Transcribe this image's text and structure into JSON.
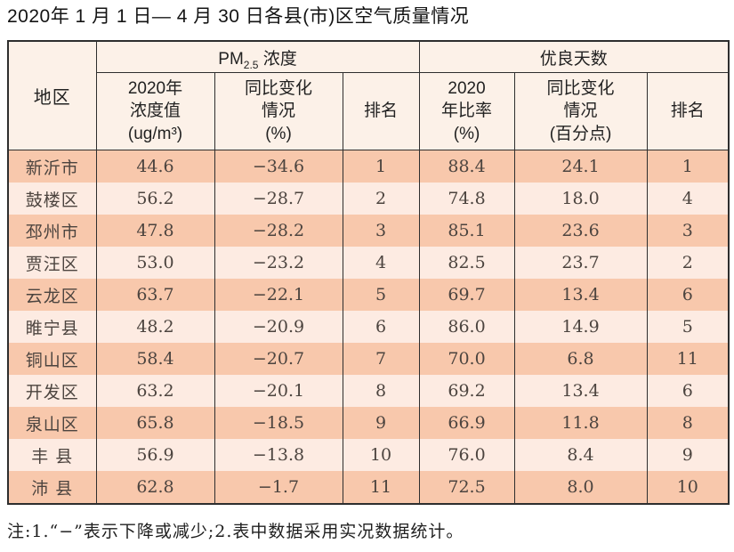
{
  "page": {
    "title": "2020年 1 月 1 日— 4 月 30 日各县(市)区空气质量情况",
    "footnote": "注:1.“−”表示下降或减少;2.表中数据采用实况数据统计。"
  },
  "colors": {
    "row_dark": "#f8c8ac",
    "row_light": "#fdebe2",
    "header_bg": "#fcf1e8",
    "border": "#2e2e2e"
  },
  "table": {
    "corner_header": "地区",
    "groups": [
      {
        "prefix": "PM",
        "subscript": "2.5",
        "suffix": " 浓度"
      },
      {
        "label": "优良天数"
      }
    ],
    "subheaders": [
      "2020年\n浓度值\n(ug/m³)",
      "同比变化\n情况\n(%)",
      "排名",
      "2020\n年比率\n(%)",
      "同比变化\n情况\n(百分点)",
      "排名"
    ],
    "rows": [
      {
        "region": "新沂市",
        "pm_value": "44.6",
        "pm_change": "−34.6",
        "pm_rank": "1",
        "good_ratio": "88.4",
        "good_change": "24.1",
        "good_rank": "1"
      },
      {
        "region": "鼓楼区",
        "pm_value": "56.2",
        "pm_change": "−28.7",
        "pm_rank": "2",
        "good_ratio": "74.8",
        "good_change": "18.0",
        "good_rank": "4"
      },
      {
        "region": "邳州市",
        "pm_value": "47.8",
        "pm_change": "−28.2",
        "pm_rank": "3",
        "good_ratio": "85.1",
        "good_change": "23.6",
        "good_rank": "3"
      },
      {
        "region": "贾汪区",
        "pm_value": "53.0",
        "pm_change": "−23.2",
        "pm_rank": "4",
        "good_ratio": "82.5",
        "good_change": "23.7",
        "good_rank": "2"
      },
      {
        "region": "云龙区",
        "pm_value": "63.7",
        "pm_change": "−22.1",
        "pm_rank": "5",
        "good_ratio": "69.7",
        "good_change": "13.4",
        "good_rank": "6"
      },
      {
        "region": "睢宁县",
        "pm_value": "48.2",
        "pm_change": "−20.9",
        "pm_rank": "6",
        "good_ratio": "86.0",
        "good_change": "14.9",
        "good_rank": "5"
      },
      {
        "region": "铜山区",
        "pm_value": "58.4",
        "pm_change": "−20.7",
        "pm_rank": "7",
        "good_ratio": "70.0",
        "good_change": "6.8",
        "good_rank": "11"
      },
      {
        "region": "开发区",
        "pm_value": "63.2",
        "pm_change": "−20.1",
        "pm_rank": "8",
        "good_ratio": "69.2",
        "good_change": "13.4",
        "good_rank": "6"
      },
      {
        "region": "泉山区",
        "pm_value": "65.8",
        "pm_change": "−18.5",
        "pm_rank": "9",
        "good_ratio": "66.9",
        "good_change": "11.8",
        "good_rank": "8"
      },
      {
        "region": "丰 县",
        "pm_value": "56.9",
        "pm_change": "−13.8",
        "pm_rank": "10",
        "good_ratio": "76.0",
        "good_change": "8.4",
        "good_rank": "9"
      },
      {
        "region": "沛 县",
        "pm_value": "62.8",
        "pm_change": "−1.7",
        "pm_rank": "11",
        "good_ratio": "72.5",
        "good_change": "8.0",
        "good_rank": "10"
      }
    ]
  },
  "chart_data": {
    "type": "table",
    "title": "2020年1月1日—4月30日各县(市)区空气质量情况",
    "columns": [
      "地区",
      "PM2.5浓度 2020年浓度值(ug/m³)",
      "PM2.5浓度 同比变化情况(%)",
      "PM2.5浓度 排名",
      "优良天数 2020年比率(%)",
      "优良天数 同比变化情况(百分点)",
      "优良天数 排名"
    ],
    "rows": [
      [
        "新沂市",
        44.6,
        -34.6,
        1,
        88.4,
        24.1,
        1
      ],
      [
        "鼓楼区",
        56.2,
        -28.7,
        2,
        74.8,
        18.0,
        4
      ],
      [
        "邳州市",
        47.8,
        -28.2,
        3,
        85.1,
        23.6,
        3
      ],
      [
        "贾汪区",
        53.0,
        -23.2,
        4,
        82.5,
        23.7,
        2
      ],
      [
        "云龙区",
        63.7,
        -22.1,
        5,
        69.7,
        13.4,
        6
      ],
      [
        "睢宁县",
        48.2,
        -20.9,
        6,
        86.0,
        14.9,
        5
      ],
      [
        "铜山区",
        58.4,
        -20.7,
        7,
        70.0,
        6.8,
        11
      ],
      [
        "开发区",
        63.2,
        -20.1,
        8,
        69.2,
        13.4,
        6
      ],
      [
        "泉山区",
        65.8,
        -18.5,
        9,
        66.9,
        11.8,
        8
      ],
      [
        "丰县",
        56.9,
        -13.8,
        10,
        76.0,
        8.4,
        9
      ],
      [
        "沛县",
        62.8,
        -1.7,
        11,
        72.5,
        8.0,
        10
      ]
    ]
  }
}
